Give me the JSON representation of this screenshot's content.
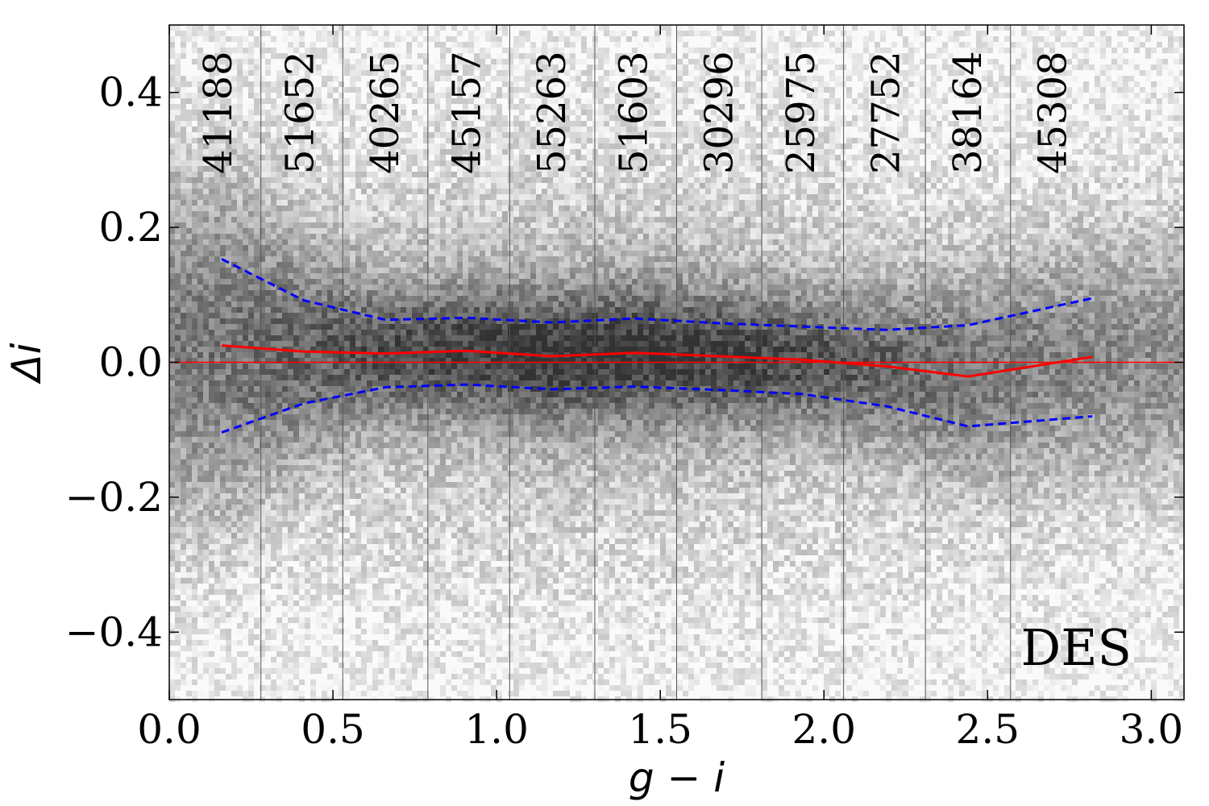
{
  "chart_data": {
    "type": "scatter",
    "title": "",
    "xlabel": "g − i",
    "ylabel": "Δi",
    "xlim": [
      0.0,
      3.1
    ],
    "ylim": [
      -0.5,
      0.5
    ],
    "xticks": [
      0.0,
      0.5,
      1.0,
      1.5,
      2.0,
      2.5,
      3.0
    ],
    "xtick_labels": [
      "0.0",
      "0.5",
      "1.0",
      "1.5",
      "2.0",
      "2.5",
      "3.0"
    ],
    "yticks": [
      0.4,
      0.2,
      0.0,
      -0.2,
      -0.4
    ],
    "ytick_labels": [
      "0.4",
      "0.2",
      "0.0",
      "−0.2",
      "−0.4"
    ],
    "grid": false,
    "background": "2D density histogram (grayscale)",
    "reference_line": {
      "y": 0.0,
      "color": "#ff0000"
    },
    "bin_edges": [
      0.28,
      0.53,
      0.79,
      1.04,
      1.3,
      1.55,
      1.81,
      2.06,
      2.31,
      2.57
    ],
    "bin_counts": [
      {
        "x": 0.15,
        "label": "41188"
      },
      {
        "x": 0.4,
        "label": "51652"
      },
      {
        "x": 0.66,
        "label": "40265"
      },
      {
        "x": 0.91,
        "label": "45157"
      },
      {
        "x": 1.17,
        "label": "55263"
      },
      {
        "x": 1.42,
        "label": "51603"
      },
      {
        "x": 1.68,
        "label": "30296"
      },
      {
        "x": 1.93,
        "label": "25975"
      },
      {
        "x": 2.19,
        "label": "27752"
      },
      {
        "x": 2.44,
        "label": "38164"
      },
      {
        "x": 2.7,
        "label": "45308"
      }
    ],
    "series": [
      {
        "role": "median",
        "color": "#ff0000",
        "style": "solid",
        "x": [
          0.16,
          0.41,
          0.66,
          0.91,
          1.17,
          1.42,
          1.68,
          1.93,
          2.19,
          2.44,
          2.82
        ],
        "y": [
          0.025,
          0.016,
          0.013,
          0.017,
          0.009,
          0.014,
          0.009,
          0.004,
          -0.006,
          -0.021,
          0.008
        ]
      },
      {
        "role": "upper",
        "color": "#0000ff",
        "style": "dashed",
        "x": [
          0.16,
          0.41,
          0.66,
          0.91,
          1.17,
          1.42,
          1.68,
          1.93,
          2.19,
          2.44,
          2.82
        ],
        "y": [
          0.153,
          0.092,
          0.063,
          0.066,
          0.059,
          0.065,
          0.058,
          0.053,
          0.048,
          0.055,
          0.095
        ]
      },
      {
        "role": "lower",
        "color": "#0000ff",
        "style": "dashed",
        "x": [
          0.16,
          0.41,
          0.66,
          0.91,
          1.17,
          1.42,
          1.68,
          1.93,
          2.19,
          2.44,
          2.82
        ],
        "y": [
          -0.104,
          -0.061,
          -0.037,
          -0.033,
          -0.04,
          -0.036,
          -0.041,
          -0.047,
          -0.065,
          -0.095,
          -0.08
        ]
      }
    ],
    "annotation": "DES"
  }
}
